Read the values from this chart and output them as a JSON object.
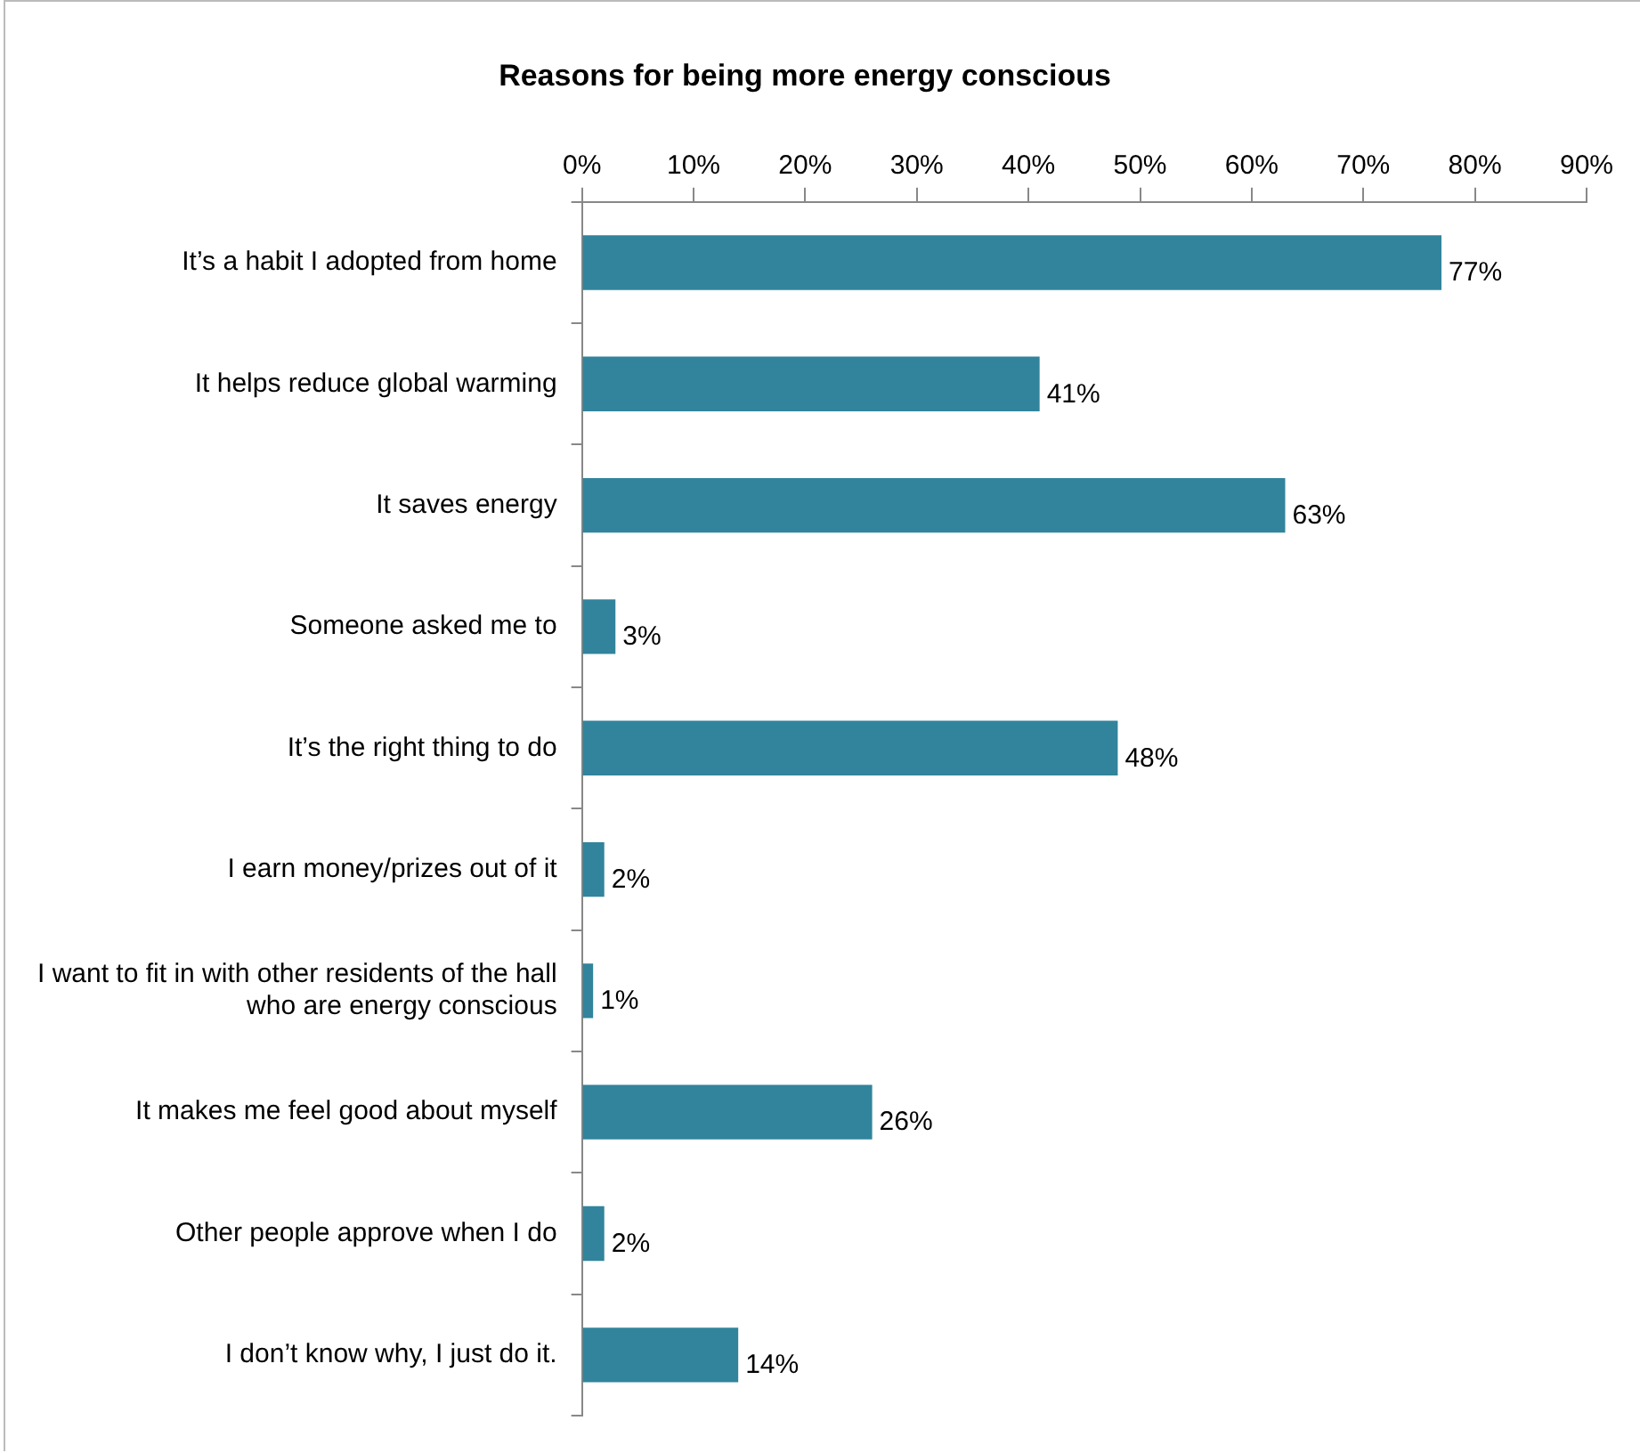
{
  "chart_data": {
    "type": "bar",
    "orientation": "horizontal",
    "title": "Reasons for being more energy conscious",
    "categories": [
      "It’s a habit I adopted from home",
      "It helps reduce global warming",
      "It saves energy",
      "Someone asked me to",
      "It’s the right thing to do",
      "I earn money/prizes out of it",
      "I want to fit in with other residents of the hall who are energy conscious",
      "It makes me feel good about myself",
      "Other people approve when I do",
      "I don’t know why, I just do it."
    ],
    "values": [
      77,
      41,
      63,
      3,
      48,
      2,
      1,
      26,
      2,
      14
    ],
    "value_labels": [
      "77%",
      "41%",
      "63%",
      "3%",
      "48%",
      "2%",
      "1%",
      "26%",
      "2%",
      "14%"
    ],
    "color": "#31849b",
    "xlim": [
      0,
      90
    ],
    "xticks": [
      {
        "value": 0,
        "label": "0%"
      },
      {
        "value": 10,
        "label": "10%"
      },
      {
        "value": 20,
        "label": "20%"
      },
      {
        "value": 30,
        "label": "30%"
      },
      {
        "value": 40,
        "label": "40%"
      },
      {
        "value": 50,
        "label": "50%"
      },
      {
        "value": 60,
        "label": "60%"
      },
      {
        "value": 70,
        "label": "70%"
      },
      {
        "value": 80,
        "label": "80%"
      },
      {
        "value": 90,
        "label": "90%"
      }
    ],
    "grid": false,
    "legend": false
  }
}
